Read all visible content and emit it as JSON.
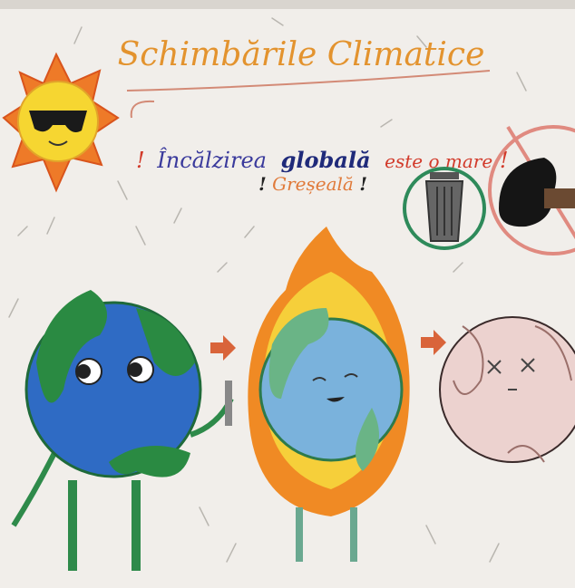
{
  "title": "Schimbările Climatice",
  "slogan": {
    "line1": [
      "!",
      "Încălzirea",
      "globală",
      "este o mare",
      "!"
    ],
    "line2": [
      "!",
      "Greșeală",
      "!"
    ]
  }
}
